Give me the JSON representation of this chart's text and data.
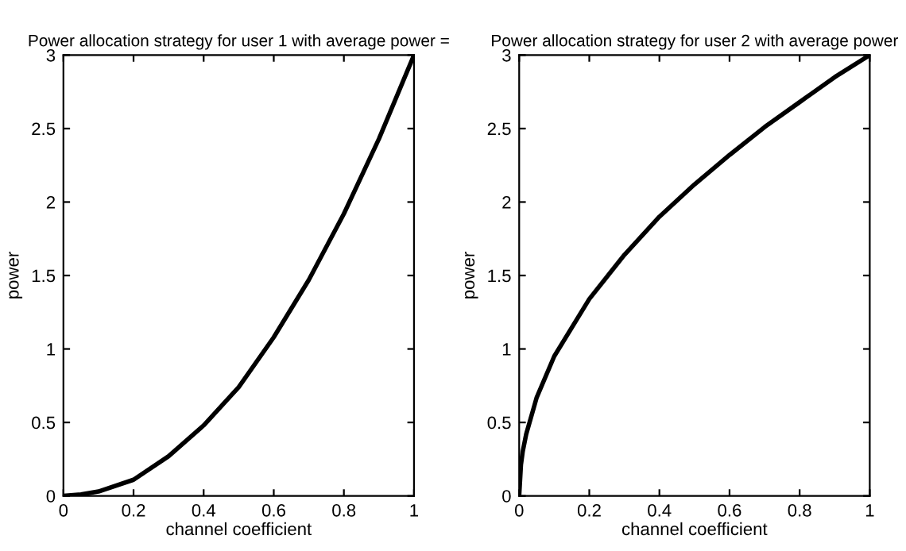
{
  "chart_data": [
    {
      "type": "line",
      "title": "Power allocation strategy for user 1 with average power =",
      "xlabel": "channel coefficient",
      "ylabel": "power",
      "x": [
        0,
        0.05,
        0.1,
        0.2,
        0.3,
        0.4,
        0.5,
        0.6,
        0.7,
        0.8,
        0.9,
        1
      ],
      "series": [
        {
          "color": "#000000",
          "values": [
            0,
            0.01,
            0.03,
            0.11,
            0.27,
            0.48,
            0.74,
            1.08,
            1.47,
            1.92,
            2.43,
            3
          ]
        }
      ],
      "xlim": [
        0,
        1
      ],
      "ylim": [
        0,
        3
      ],
      "xticks": [
        0,
        0.2,
        0.4,
        0.6,
        0.8,
        1
      ],
      "yticks": [
        0,
        0.5,
        1,
        1.5,
        2,
        2.5,
        3
      ],
      "grid": false,
      "legend": false,
      "line_style": "solid",
      "marker": "none"
    },
    {
      "type": "line",
      "title": "Power allocation strategy for user 2 with average power",
      "xlabel": "channel coefficient",
      "ylabel": "power",
      "x": [
        0,
        0.005,
        0.01,
        0.02,
        0.05,
        0.1,
        0.2,
        0.3,
        0.4,
        0.5,
        0.6,
        0.7,
        0.8,
        0.9,
        1
      ],
      "series": [
        {
          "color": "#000000",
          "values": [
            0,
            0.21,
            0.3,
            0.42,
            0.67,
            0.95,
            1.34,
            1.64,
            1.9,
            2.12,
            2.32,
            2.51,
            2.68,
            2.85,
            3
          ]
        }
      ],
      "xlim": [
        0,
        1
      ],
      "ylim": [
        0,
        3
      ],
      "xticks": [
        0,
        0.2,
        0.4,
        0.6,
        0.8,
        1
      ],
      "yticks": [
        0,
        0.5,
        1,
        1.5,
        2,
        2.5,
        3
      ],
      "grid": false,
      "legend": false,
      "line_style": "solid",
      "marker": "none"
    }
  ]
}
